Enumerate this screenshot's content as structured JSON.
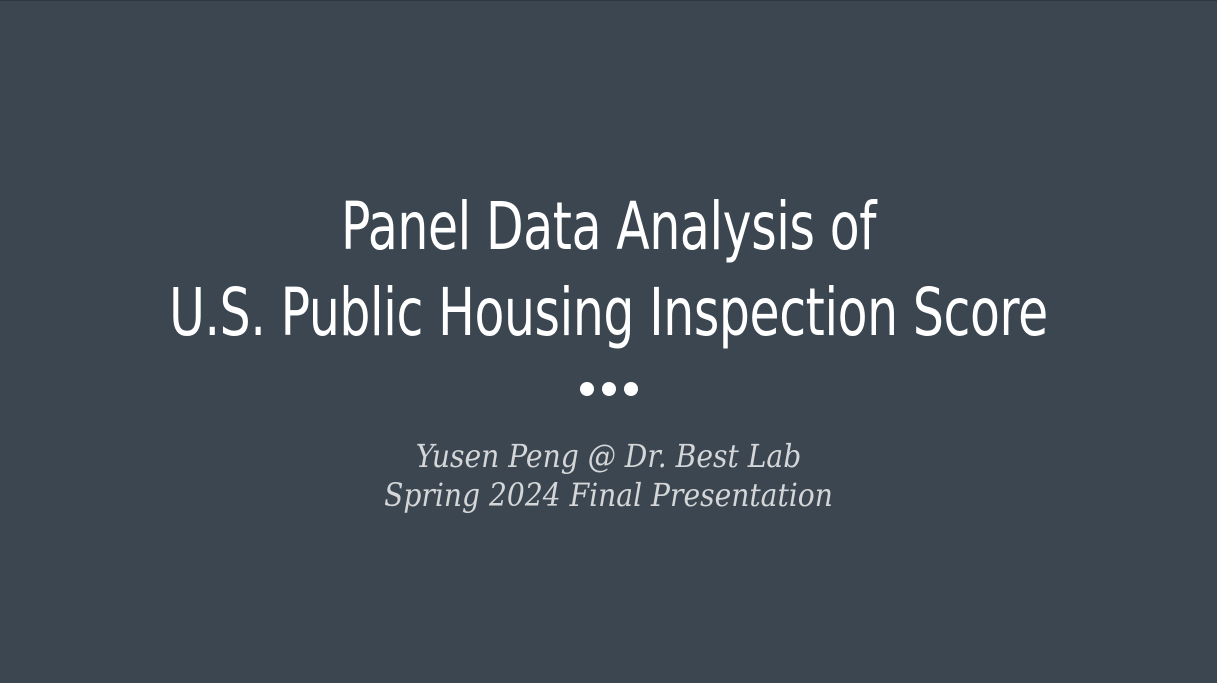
{
  "slide": {
    "title_lines": [
      "Panel Data Analysis of",
      "U.S. Public Housing Inspection Score"
    ],
    "subtitle_lines": [
      "Yusen Peng @ Dr. Best Lab",
      "Spring 2024 Final Presentation"
    ],
    "separator_icon": "three-dots-icon",
    "colors": {
      "background": "#3b4650",
      "title": "#ffffff",
      "subtitle": "#d4d6d8",
      "dots": "#ffffff"
    }
  }
}
